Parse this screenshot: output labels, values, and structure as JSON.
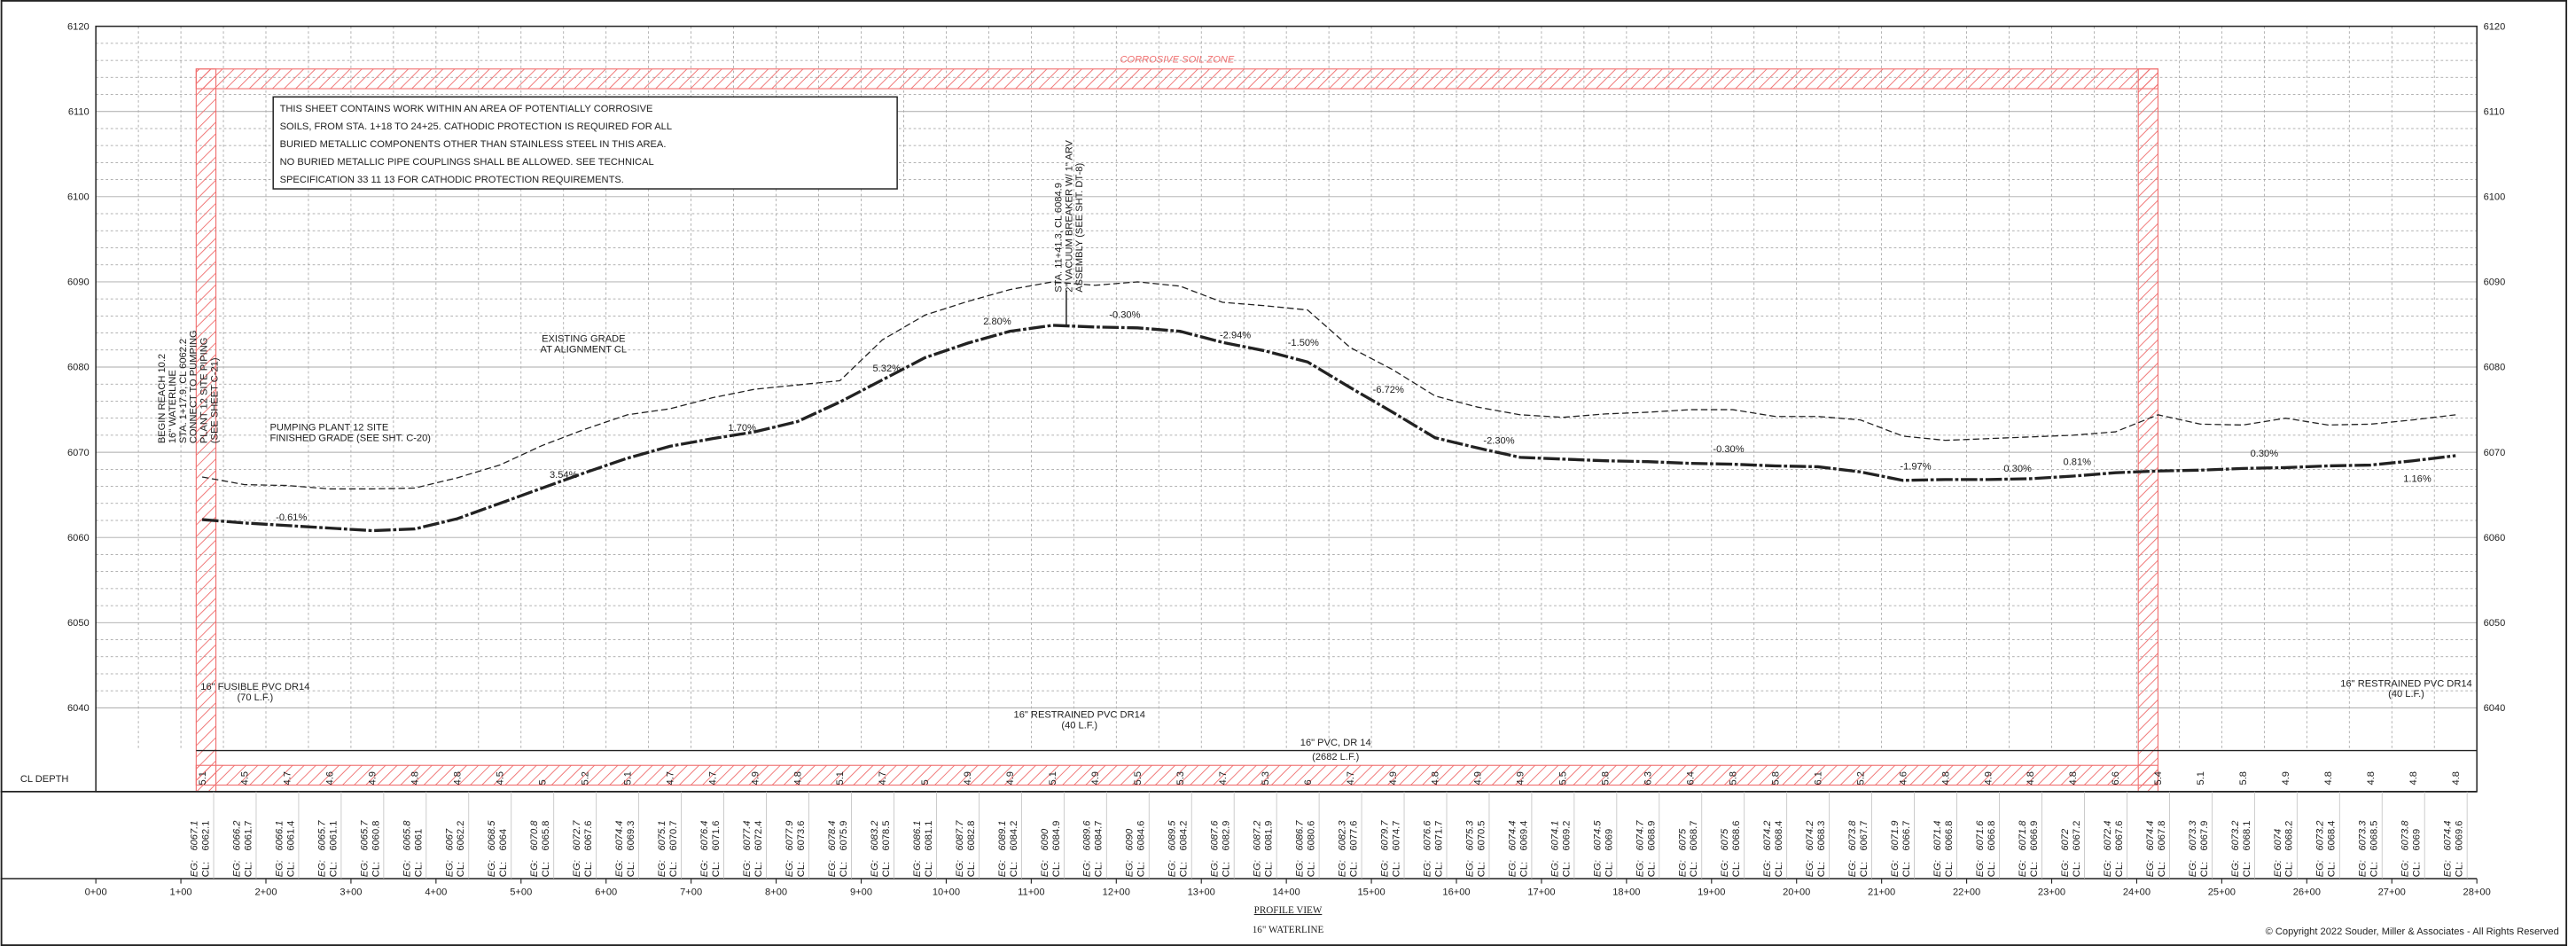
{
  "zone_title": "CORROSIVE SOIL ZONE",
  "note": [
    "THIS SHEET CONTAINS WORK WITHIN AN AREA OF POTENTIALLY CORROSIVE",
    "SOILS, FROM STA. 1+18 TO 24+25.  CATHODIC PROTECTION IS REQUIRED FOR ALL",
    "BURIED METALLIC COMPONENTS OTHER THAN STAINLESS STEEL IN THIS AREA.",
    "NO BURIED METALLIC PIPE COUPLINGS SHALL BE ALLOWED. SEE TECHNICAL",
    "SPECIFICATION 33 11 13 FOR CATHODIC PROTECTION REQUIREMENTS."
  ],
  "elevation_ticks": [
    6040,
    6050,
    6060,
    6070,
    6080,
    6090,
    6100,
    6110,
    6120
  ],
  "elevation_range": [
    6032,
    6120
  ],
  "station_ticks": [
    {
      "value": 0,
      "label": "0+00"
    },
    {
      "value": 1,
      "label": "1+00"
    },
    {
      "value": 2,
      "label": "2+00"
    },
    {
      "value": 3,
      "label": "3+00"
    },
    {
      "value": 4,
      "label": "4+00"
    },
    {
      "value": 5,
      "label": "5+00"
    },
    {
      "value": 6,
      "label": "6+00"
    },
    {
      "value": 7,
      "label": "7+00"
    },
    {
      "value": 8,
      "label": "8+00"
    },
    {
      "value": 9,
      "label": "9+00"
    },
    {
      "value": 10,
      "label": "10+00"
    },
    {
      "value": 11,
      "label": "11+00"
    },
    {
      "value": 12,
      "label": "12+00"
    },
    {
      "value": 13,
      "label": "13+00"
    },
    {
      "value": 14,
      "label": "14+00"
    },
    {
      "value": 15,
      "label": "15+00"
    },
    {
      "value": 16,
      "label": "16+00"
    },
    {
      "value": 17,
      "label": "17+00"
    },
    {
      "value": 18,
      "label": "18+00"
    },
    {
      "value": 19,
      "label": "19+00"
    },
    {
      "value": 20,
      "label": "20+00"
    },
    {
      "value": 21,
      "label": "21+00"
    },
    {
      "value": 22,
      "label": "22+00"
    },
    {
      "value": 23,
      "label": "23+00"
    },
    {
      "value": 24,
      "label": "24+00"
    },
    {
      "value": 25,
      "label": "25+00"
    },
    {
      "value": 26,
      "label": "26+00"
    },
    {
      "value": 27,
      "label": "27+00"
    },
    {
      "value": 28,
      "label": "28+00"
    }
  ],
  "eg_prefix": "EG:",
  "cl_prefix": "CL:",
  "cl_depth_label": "CL DEPTH",
  "column_stations": [
    1.25,
    1.75,
    2.25,
    2.75,
    3.25,
    3.75,
    4.25,
    4.75,
    5.25,
    5.75,
    6.25,
    6.75,
    7.25,
    7.75,
    8.25,
    8.75,
    9.25,
    9.75,
    10.25,
    10.75,
    11.25,
    11.75,
    12.25,
    12.75,
    13.25,
    13.75,
    14.25,
    14.75,
    15.25,
    15.75,
    16.25,
    16.75,
    17.25,
    17.75,
    18.25,
    18.75,
    19.25,
    19.75,
    20.25,
    20.75,
    21.25,
    21.75,
    22.25,
    22.75,
    23.25,
    23.75,
    24.25,
    24.75,
    25.25,
    25.75,
    26.25,
    26.75,
    27.25,
    27.75
  ],
  "existing_grade": [
    6067.1,
    6066.2,
    6066.1,
    6065.7,
    6065.7,
    6065.8,
    6067.0,
    6068.5,
    6070.8,
    6072.7,
    6074.4,
    6075.1,
    6076.4,
    6077.4,
    6077.9,
    6078.4,
    6083.2,
    6086.1,
    6087.7,
    6089.1,
    6090.0,
    6089.6,
    6090.0,
    6089.5,
    6087.6,
    6087.2,
    6086.7,
    6082.3,
    6079.7,
    6076.6,
    6075.3,
    6074.4,
    6074.1,
    6074.5,
    6074.7,
    6075.0,
    6075.0,
    6074.2,
    6074.2,
    6073.8,
    6071.9,
    6071.4,
    6071.6,
    6071.8,
    6072.0,
    6072.4,
    6074.4,
    6073.3,
    6073.2,
    6074.0,
    6073.2,
    6073.3,
    6073.8,
    6074.4
  ],
  "centerline": [
    6062.1,
    6061.7,
    6061.4,
    6061.1,
    6060.8,
    6061.0,
    6062.2,
    6064.0,
    6065.8,
    6067.6,
    6069.3,
    6070.7,
    6071.6,
    6072.4,
    6073.6,
    6075.9,
    6078.5,
    6081.1,
    6082.8,
    6084.2,
    6084.9,
    6084.7,
    6084.6,
    6084.2,
    6082.9,
    6081.9,
    6080.6,
    6077.6,
    6074.7,
    6071.7,
    6070.5,
    6069.4,
    6069.2,
    6069.0,
    6068.9,
    6068.7,
    6068.6,
    6068.4,
    6068.3,
    6067.7,
    6066.7,
    6066.8,
    6066.8,
    6066.9,
    6067.2,
    6067.6,
    6067.8,
    6067.9,
    6068.1,
    6068.2,
    6068.4,
    6068.5,
    6069.0,
    6069.6
  ],
  "cl_depth": [
    5.1,
    4.5,
    4.7,
    4.6,
    4.9,
    4.8,
    4.8,
    4.5,
    5.0,
    5.2,
    5.1,
    4.7,
    4.7,
    4.9,
    4.8,
    5.1,
    4.7,
    5.0,
    4.9,
    4.9,
    5.1,
    4.9,
    5.5,
    5.3,
    4.7,
    5.3,
    6.0,
    4.7,
    4.9,
    4.8,
    4.9,
    4.9,
    5.5,
    5.8,
    6.3,
    6.4,
    5.8,
    5.8,
    6.1,
    5.2,
    4.6,
    4.8,
    4.9,
    4.8,
    4.8,
    6.6,
    5.4,
    5.1,
    5.8,
    4.9,
    4.8,
    4.8,
    4.8,
    4.8
  ],
  "grades": [
    "-0.61%",
    "3.54%",
    "1.70%",
    "5.32%",
    "2.80%",
    "-0.30%",
    "-2.94%",
    "-1.50%",
    "-6.72%",
    "-2.30%",
    "-0.30%",
    "-1.97%",
    "0.30%",
    "0.81%",
    "0.30%",
    "1.16%"
  ],
  "callouts": {
    "existing_grade": [
      "EXISTING GRADE",
      "AT ALIGNMENT CL"
    ],
    "pumping_plant": [
      "PUMPING PLANT 12 SITE",
      "FINISHED GRADE (SEE SHT. C-20)"
    ],
    "begin": [
      "BEGIN REACH 10.2",
      "16\" WATERLINE",
      "STA. 1+17.9, CL 6062.2",
      "CONNECT TO PUMPING",
      "PLANT 12 SITE PIPING",
      "(SEE SHEET C-21)"
    ],
    "arv": [
      "STA. 11+41.3, CL 6084.9",
      "2\" VACUUM BREAKER W/ 1\" ARV",
      "ASSEMBLY (SEE SHT. DT-8)"
    ],
    "fusible": [
      "16\" FUSIBLE PVC DR14",
      "(70 L.F.)"
    ],
    "restrained1": [
      "16\" RESTRAINED PVC DR14",
      "(40 L.F.)"
    ],
    "restrained2": [
      "16\" RESTRAINED PVC DR14",
      "(40 L.F.)"
    ],
    "pvc": [
      "16\" PVC, DR 14",
      "(2682 L.F.)"
    ]
  },
  "title": "PROFILE VIEW",
  "subtitle": "16\" WATERLINE",
  "copyright": "© Copyright 2022 Souder, Miller & Associates - All Rights Reserved"
}
